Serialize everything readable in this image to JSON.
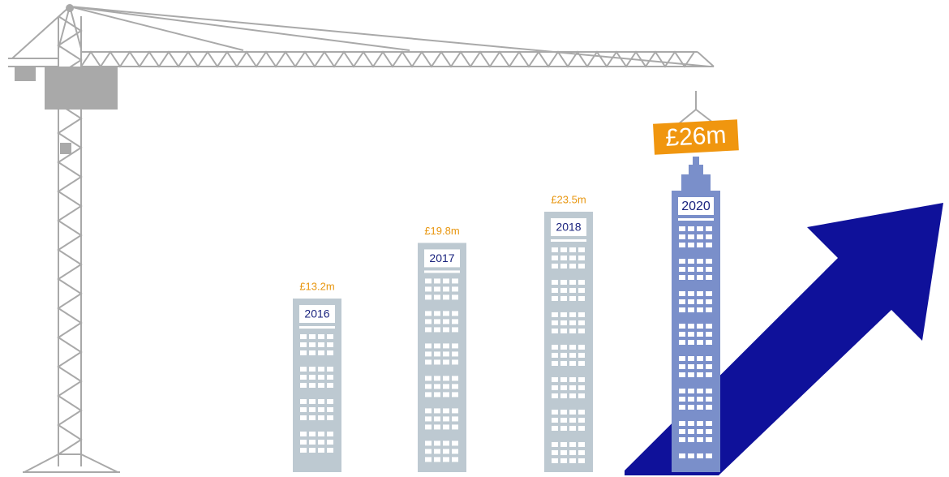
{
  "chart_data": {
    "type": "bar",
    "categories": [
      "2016",
      "2017",
      "2018",
      "2020"
    ],
    "values": [
      13.2,
      19.8,
      23.5,
      26
    ],
    "value_labels": [
      "£13.2m",
      "£19.8m",
      "£23.5m",
      "£26m"
    ],
    "colors": [
      "#bdc9d1",
      "#bdc9d1",
      "#bdc9d1",
      "#7a8fca"
    ]
  }
}
